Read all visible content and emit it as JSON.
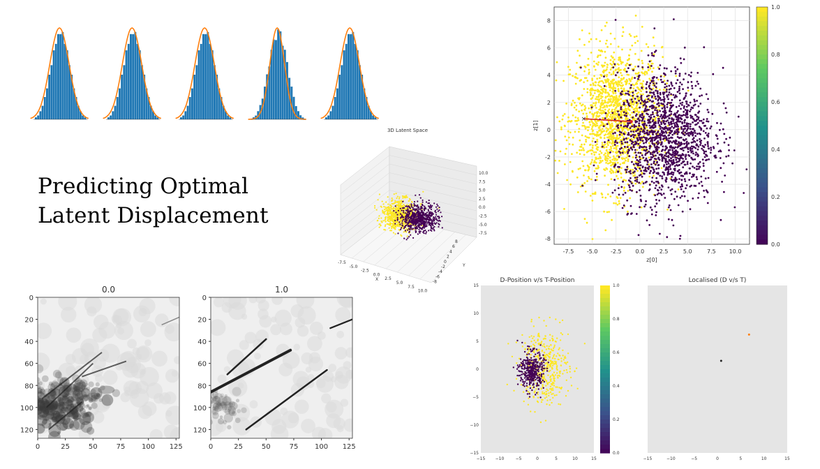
{
  "title_lines": [
    "Predicting Optimal",
    "Latent Displacement"
  ],
  "colors": {
    "yellow": "#fde725",
    "purple": "#440154",
    "hist_blue": "#1f77b4",
    "fit_orange": "#ff7f0e",
    "arrow_red": "#d62728",
    "panel_gray": "#e5e5e5",
    "grid": "#dddddd"
  },
  "chart_data": [
    {
      "id": "histograms",
      "type": "bar",
      "title": "",
      "count": 5,
      "hist_bins": [
        1,
        2,
        4,
        7,
        11,
        16,
        22,
        28,
        34,
        39,
        42,
        44,
        43,
        39,
        34,
        28,
        22,
        16,
        11,
        7,
        4,
        2,
        1
      ],
      "fit": "gaussian"
    },
    {
      "id": "scatter-main",
      "type": "scatter",
      "title": "",
      "xlabel": "z[0]",
      "ylabel": "z[1]",
      "xlim": [
        -9,
        11.5
      ],
      "ylim": [
        -8.4,
        9
      ],
      "xticks": [
        -7.5,
        -5.0,
        -2.5,
        0.0,
        2.5,
        5.0,
        7.5,
        10.0
      ],
      "yticks": [
        -8,
        -6,
        -4,
        -2,
        0,
        2,
        4,
        6,
        8
      ],
      "series": [
        {
          "name": "",
          "center": [
            -2.5,
            0.8
          ],
          "spread": [
            2.4,
            2.6
          ],
          "count": 1600,
          "color_value": 1.0
        },
        {
          "name": "",
          "center": [
            2.6,
            -0.5
          ],
          "spread": [
            2.6,
            2.4
          ],
          "count": 1500,
          "color_value": 0.0
        }
      ],
      "arrow": {
        "from": [
          -5.9,
          0.8
        ],
        "to": [
          -0.9,
          0.6
        ]
      },
      "colorbar": {
        "range": [
          0,
          1
        ],
        "ticks": [
          "0.0",
          "0.2",
          "0.4",
          "0.6",
          "0.8",
          "1.0"
        ]
      }
    },
    {
      "id": "scatter-3d",
      "type": "scatter",
      "title": "3D Latent Space",
      "xlabel": "X",
      "ylabel": "Y",
      "zticks": [
        "10.0",
        "7.5",
        "5.0",
        "2.5",
        "0.0",
        "-2.5",
        "-5.0",
        "-7.5"
      ],
      "xticks": [
        "-7.5",
        "-5.0",
        "-2.5",
        "0.0",
        "2.5",
        "5.0",
        "7.5",
        "10.0"
      ],
      "yticks": [
        "8",
        "6",
        "4",
        "2",
        "0",
        "-2",
        "-4",
        "-6",
        "-8"
      ]
    },
    {
      "id": "heatmap-0",
      "type": "heatmap",
      "title": "0.0",
      "xticks": [
        "0",
        "25",
        "50",
        "75",
        "100",
        "125"
      ],
      "yticks": [
        "0",
        "20",
        "40",
        "60",
        "80",
        "100",
        "120"
      ]
    },
    {
      "id": "heatmap-1",
      "type": "heatmap",
      "title": "1.0",
      "xticks": [
        "0",
        "25",
        "50",
        "75",
        "100",
        "125"
      ],
      "yticks": [
        "0",
        "20",
        "40",
        "60",
        "80",
        "100",
        "120"
      ]
    },
    {
      "id": "d-vs-t",
      "type": "scatter",
      "title": "D-Position v/s T-Position",
      "xlim": [
        -15,
        15
      ],
      "ylim": [
        -15,
        15
      ],
      "xticks": [
        "−15",
        "−10",
        "−5",
        "0",
        "5",
        "10",
        "15"
      ],
      "yticks": [
        "15",
        "10",
        "5",
        "0",
        "−5",
        "−10",
        "−15"
      ],
      "series": [
        {
          "name": "",
          "center": [
            2.0,
            0.5
          ],
          "spread": [
            3.2,
            3.4
          ],
          "count": 420,
          "color_value": 1.0
        },
        {
          "name": "",
          "center": [
            -1.5,
            -0.3
          ],
          "spread": [
            1.6,
            1.7
          ],
          "count": 360,
          "color_value": 0.0
        }
      ],
      "colorbar": {
        "ticks": [
          "0.0",
          "0.2",
          "0.4",
          "0.6",
          "0.8",
          "1.0"
        ]
      }
    },
    {
      "id": "localised",
      "type": "scatter",
      "title": "Localised (D v/s T)",
      "xlim": [
        -15,
        15
      ],
      "ylim": [
        -15,
        15
      ],
      "xticks": [
        "−15",
        "−10",
        "−5",
        "0",
        "5",
        "10",
        "15"
      ],
      "points": [
        {
          "x": 0.8,
          "y": 1.5,
          "color": "#222222"
        },
        {
          "x": 6.8,
          "y": 6.2,
          "color": "#ff7f0e"
        }
      ]
    }
  ]
}
